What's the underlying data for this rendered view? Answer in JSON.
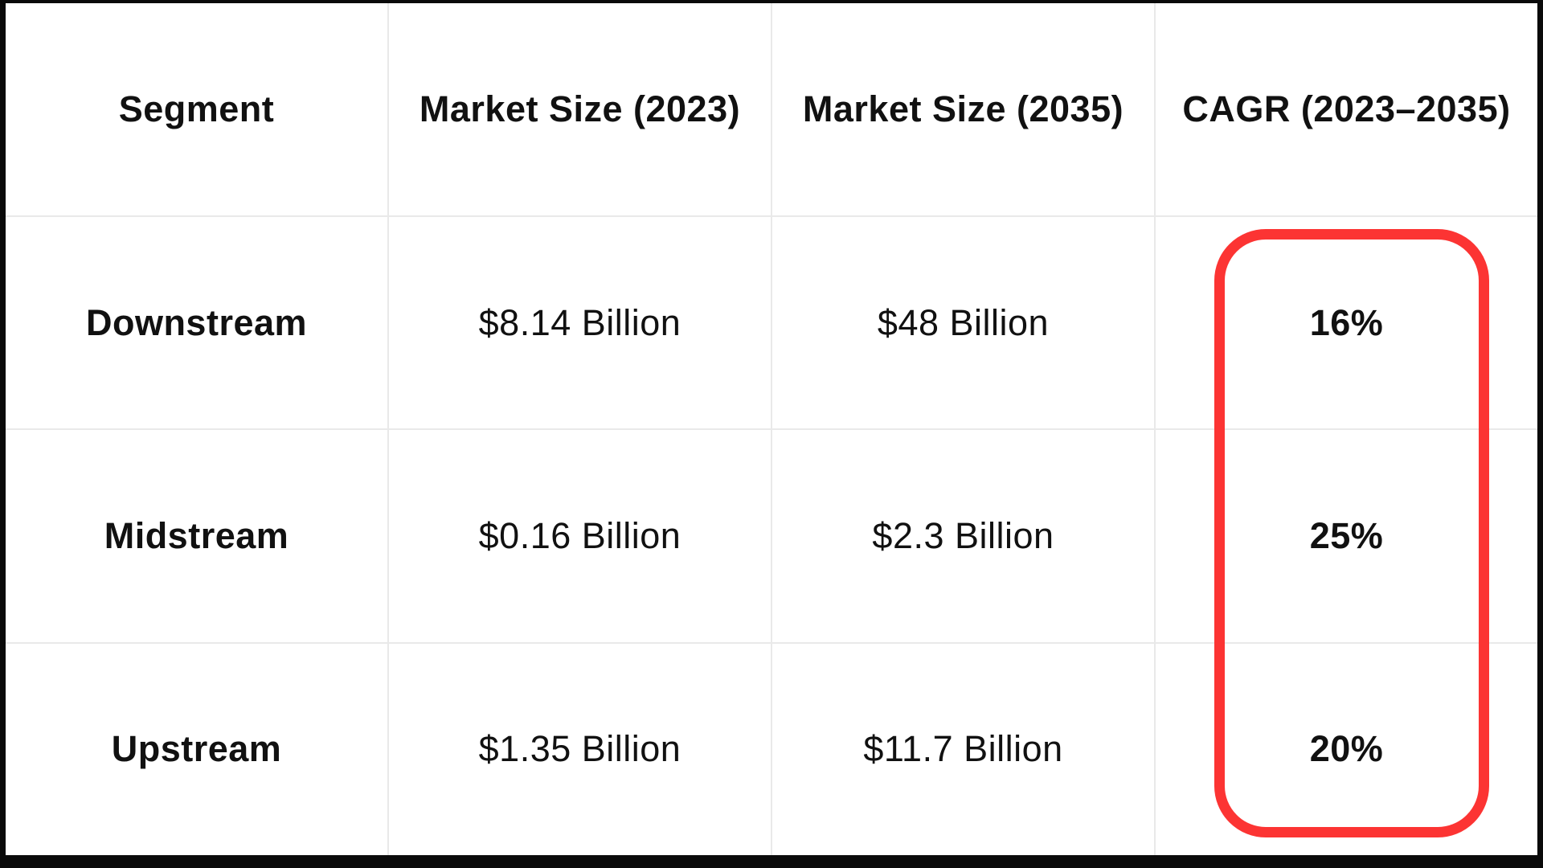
{
  "chart_data": {
    "type": "table",
    "columns": [
      "Segment",
      "Market Size (2023)",
      "Market Size (2035)",
      "CAGR (2023–2035)"
    ],
    "rows": [
      [
        "Downstream",
        "$8.14 Billion",
        "$48 Billion",
        "16%"
      ],
      [
        "Midstream",
        "$0.16 Billion",
        "$2.3 Billion",
        "25%"
      ],
      [
        "Upstream",
        "$1.35 Billion",
        "$11.7 Billion",
        "20%"
      ]
    ],
    "annotation": {
      "shape": "rounded-rectangle-outline",
      "color": "#fc3433",
      "highlights": "CAGR (2023–2035) column values: 16%, 25%, 20%"
    },
    "layout": {
      "grid": "on",
      "grid_line_color": "#e9e9e9",
      "outer_border_color": "#0a0a0a",
      "background": "#ffffff",
      "header_style": "bold",
      "first_column_style": "bold"
    }
  }
}
